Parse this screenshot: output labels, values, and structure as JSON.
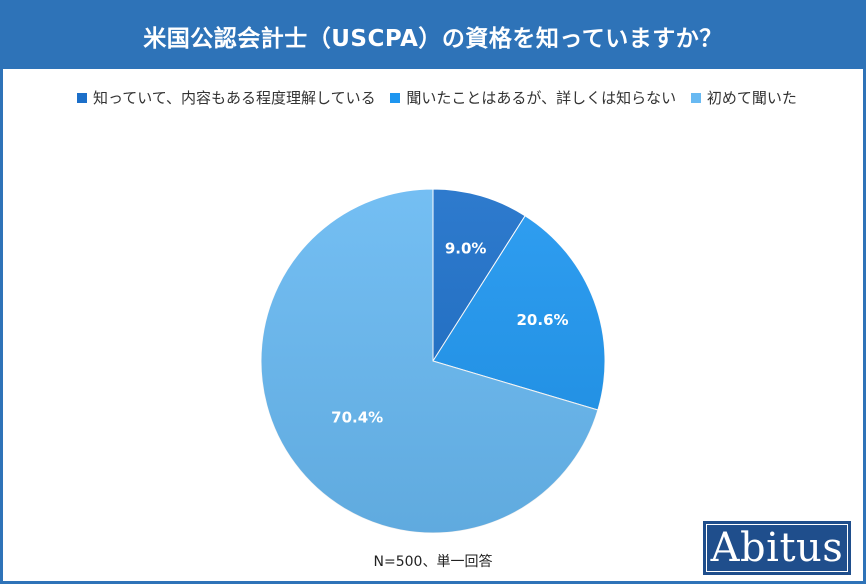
{
  "title": "米国公認会計士（USCPA）の資格を知っていますか？",
  "note": "N=500、単一回答",
  "logo_text": "Abitus",
  "colors": {
    "frame": "#2e73b8",
    "title_bg": "#2e73b8",
    "logo_bg": "#1f4e8c"
  },
  "chart_data": {
    "type": "pie",
    "title": "米国公認会計士（USCPA）の資格を知っていますか？",
    "legend_position": "top",
    "series": [
      {
        "name": "知っていて、内容もある程度理解している",
        "value": 9.0,
        "label": "9.0%",
        "color": "#1c6fc9"
      },
      {
        "name": "聞いたことはあるが、詳しくは知らない",
        "value": 20.6,
        "label": "20.6%",
        "color": "#1e96f0"
      },
      {
        "name": "初めて聞いた",
        "value": 70.4,
        "label": "70.4%",
        "color": "#68b9f2"
      }
    ]
  }
}
